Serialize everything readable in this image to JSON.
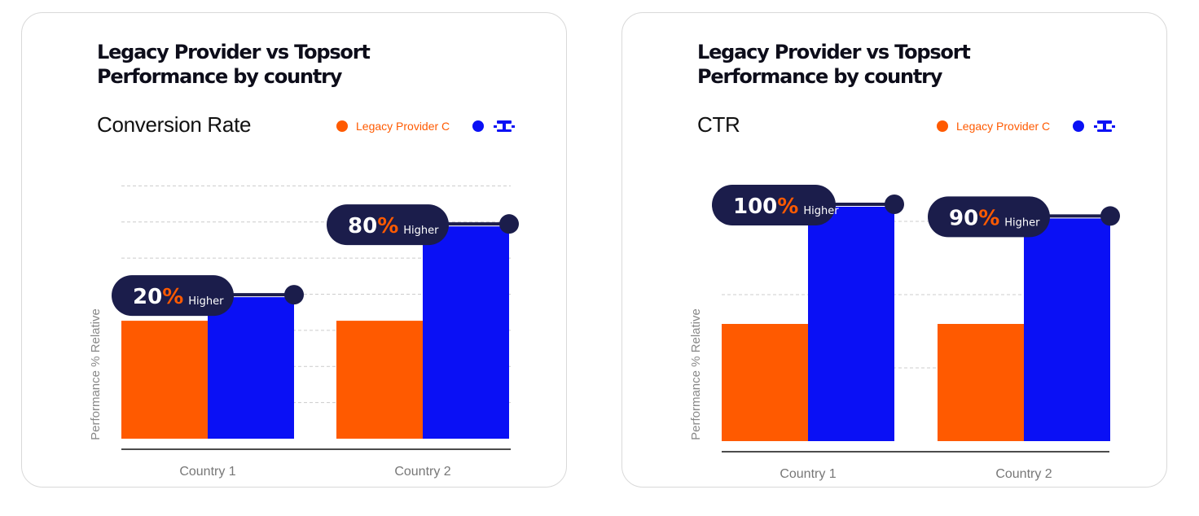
{
  "colors": {
    "legacy": "#ff5a00",
    "topsort": "#0a10f5",
    "pill": "#1b1d4b",
    "accent_text": "#ff5a00",
    "grid": "#cccccc",
    "axis": "#111111"
  },
  "cards": [
    {
      "title_line1": "Legacy Provider vs Topsort",
      "title_line2": "Performance by country",
      "metric": "Conversion Rate",
      "legend": {
        "legacy_label": "Legacy Provider C",
        "topsort_icon": "topsort-logo-icon"
      }
    },
    {
      "title_line1": "Legacy Provider vs Topsort",
      "title_line2": "Performance by country",
      "metric": "CTR",
      "legend": {
        "legacy_label": "Legacy Provider C",
        "topsort_icon": "topsort-logo-icon"
      }
    }
  ],
  "chart_data": [
    {
      "type": "bar",
      "title": "Conversion Rate",
      "ylabel": "Performance % Relative",
      "categories": [
        "Country 1",
        "Country 2"
      ],
      "series": [
        {
          "name": "Legacy Provider C",
          "values": [
            1.0,
            1.0
          ]
        },
        {
          "name": "",
          "values": [
            1.2,
            1.8
          ]
        }
      ],
      "annotations": [
        {
          "pct": "20%",
          "word": "Higher"
        },
        {
          "pct": "80%",
          "word": "Higher"
        }
      ],
      "ylim": [
        0,
        2.45
      ],
      "gridlines": 7,
      "grid": true,
      "legend_position": "top-right"
    },
    {
      "type": "bar",
      "title": "CTR",
      "ylabel": "Performance % Relative",
      "categories": [
        "Country 1",
        "Country 2"
      ],
      "series": [
        {
          "name": "Legacy Provider C",
          "values": [
            1.0,
            1.0
          ]
        },
        {
          "name": "",
          "values": [
            2.0,
            1.9
          ]
        }
      ],
      "annotations": [
        {
          "pct": "100%",
          "word": "Higher"
        },
        {
          "pct": "90%",
          "word": "Higher"
        }
      ],
      "ylim": [
        0,
        2.5
      ],
      "gridlines": 3,
      "grid": true,
      "legend_position": "top-right"
    }
  ]
}
